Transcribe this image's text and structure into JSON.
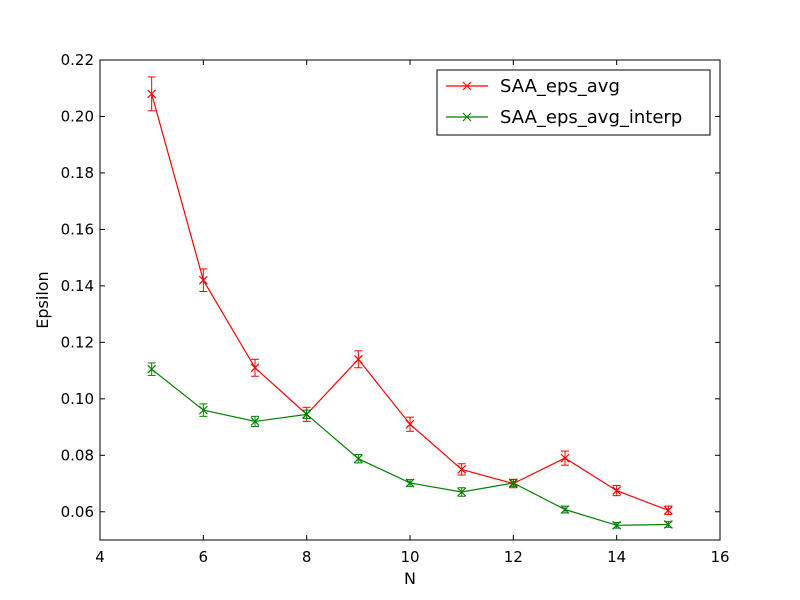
{
  "chart_data": {
    "type": "line",
    "title": "",
    "xlabel": "N",
    "ylabel": "Epsilon",
    "xlim": [
      4,
      16
    ],
    "ylim": [
      0.05,
      0.22
    ],
    "xticks": [
      4,
      6,
      8,
      10,
      12,
      14,
      16
    ],
    "yticks": [
      0.06,
      0.08,
      0.1,
      0.12,
      0.14,
      0.16,
      0.18,
      0.2,
      0.22
    ],
    "xtick_labels": [
      "4",
      "6",
      "8",
      "10",
      "12",
      "14",
      "16"
    ],
    "ytick_labels": [
      "0.06",
      "0.08",
      "0.10",
      "0.12",
      "0.14",
      "0.16",
      "0.18",
      "0.20",
      "0.22"
    ],
    "grid": false,
    "legend_position": "top-right",
    "marker": "x",
    "x": [
      5,
      6,
      7,
      8,
      9,
      10,
      11,
      12,
      13,
      14,
      15
    ],
    "series": [
      {
        "name": "SAA_eps_avg",
        "color": "#ff0000",
        "values": [
          0.208,
          0.142,
          0.111,
          0.0945,
          0.114,
          0.091,
          0.075,
          0.07,
          0.079,
          0.0675,
          0.0605
        ],
        "errors": [
          0.006,
          0.004,
          0.003,
          0.0025,
          0.003,
          0.0025,
          0.002,
          0.0015,
          0.0025,
          0.0018,
          0.0015
        ]
      },
      {
        "name": "SAA_eps_avg_interp",
        "color": "#008000",
        "values": [
          0.1105,
          0.096,
          0.092,
          0.0945,
          0.0788,
          0.0702,
          0.067,
          0.0702,
          0.0608,
          0.0552,
          0.0555
        ],
        "errors": [
          0.0022,
          0.0022,
          0.0018,
          0.0015,
          0.0015,
          0.0012,
          0.0015,
          0.0012,
          0.0012,
          0.001,
          0.001
        ]
      }
    ]
  }
}
